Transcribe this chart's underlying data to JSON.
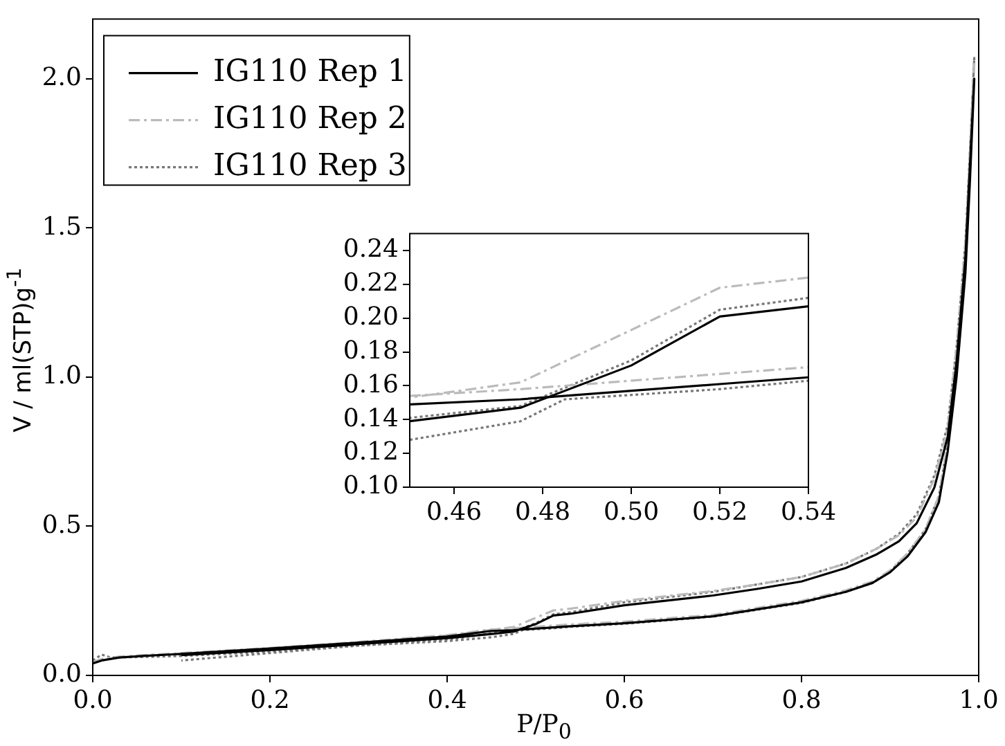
{
  "chart_data": [
    {
      "type": "line",
      "xlabel": "P/P$_{0}$",
      "ylabel": "V / ml(STP)g$^{-1}$",
      "xlim": [
        0,
        1
      ],
      "ylim": [
        0,
        2.2
      ],
      "xticks": [
        {
          "value": 0,
          "label": "0.0"
        },
        {
          "value": 0.2,
          "label": "0.2"
        },
        {
          "value": 0.4,
          "label": "0.4"
        },
        {
          "value": 0.6,
          "label": "0.6"
        },
        {
          "value": 0.8,
          "label": "0.8"
        },
        {
          "value": 1,
          "label": "1.0"
        }
      ],
      "yticks": [
        {
          "value": 0,
          "label": "0.0"
        },
        {
          "value": 0.5,
          "label": "0.5"
        },
        {
          "value": 1,
          "label": "1.0"
        },
        {
          "value": 1.5,
          "label": "1.5"
        },
        {
          "value": 2,
          "label": "2.0"
        }
      ],
      "grid": false,
      "legend": "top left",
      "marker": "none",
      "series": [
        {
          "name": "IG110 Rep 1",
          "color": "#000000",
          "line_style": "solid",
          "x": [
            0,
            0.01,
            0.03,
            0.06,
            0.1,
            0.2,
            0.3,
            0.4,
            0.45,
            0.475,
            0.52,
            0.54,
            0.6,
            0.7,
            0.8,
            0.85,
            0.88,
            0.9,
            0.92,
            0.94,
            0.955,
            0.965,
            0.975,
            0.985,
            0.99,
            0.995,
            0.99,
            0.985,
            0.975,
            0.965,
            0.95,
            0.93,
            0.91,
            0.885,
            0.85,
            0.8,
            0.75,
            0.7,
            0.6,
            0.54,
            0.52,
            0.5,
            0.475,
            0.45,
            0.4,
            0.3,
            0.2,
            0.1
          ],
          "values": [
            0.04,
            0.05,
            0.06,
            0.066,
            0.072,
            0.09,
            0.11,
            0.13,
            0.149,
            0.152,
            0.161,
            0.165,
            0.175,
            0.198,
            0.245,
            0.28,
            0.31,
            0.346,
            0.4,
            0.48,
            0.58,
            0.75,
            1.0,
            1.35,
            1.65,
            2.0,
            1.7,
            1.4,
            1.05,
            0.8,
            0.63,
            0.51,
            0.45,
            0.406,
            0.36,
            0.315,
            0.29,
            0.268,
            0.235,
            0.207,
            0.201,
            0.172,
            0.147,
            0.139,
            0.125,
            0.105,
            0.085,
            0.068
          ]
        },
        {
          "name": "IG110 Rep 2",
          "color": "#bbbbbb",
          "line_style": "dashed",
          "x": [
            0,
            0.01,
            0.03,
            0.06,
            0.1,
            0.2,
            0.3,
            0.4,
            0.45,
            0.475,
            0.52,
            0.54,
            0.6,
            0.7,
            0.8,
            0.85,
            0.88,
            0.9,
            0.92,
            0.94,
            0.955,
            0.965,
            0.975,
            0.985,
            0.99,
            0.995,
            0.99,
            0.985,
            0.975,
            0.965,
            0.95,
            0.93,
            0.91,
            0.885,
            0.85,
            0.8,
            0.75,
            0.7,
            0.6,
            0.54,
            0.52,
            0.5,
            0.475,
            0.45,
            0.4,
            0.3,
            0.2,
            0.1
          ],
          "values": [
            0.045,
            0.055,
            0.063,
            0.068,
            0.075,
            0.092,
            0.112,
            0.135,
            0.154,
            0.158,
            0.167,
            0.171,
            0.18,
            0.203,
            0.25,
            0.285,
            0.315,
            0.352,
            0.41,
            0.49,
            0.6,
            0.78,
            1.03,
            1.4,
            1.7,
            2.05,
            1.75,
            1.45,
            1.1,
            0.83,
            0.66,
            0.53,
            0.47,
            0.425,
            0.375,
            0.33,
            0.305,
            0.283,
            0.25,
            0.224,
            0.218,
            0.193,
            0.162,
            0.153,
            0.133,
            0.11,
            0.09,
            0.072
          ]
        },
        {
          "name": "IG110 Rep 3",
          "color": "#777777",
          "line_style": "dotted",
          "x": [
            0,
            0.01,
            0.02,
            0.06,
            0.1,
            0.2,
            0.3,
            0.4,
            0.45,
            0.475,
            0.485,
            0.52,
            0.54,
            0.6,
            0.7,
            0.8,
            0.85,
            0.88,
            0.9,
            0.92,
            0.94,
            0.955,
            0.965,
            0.975,
            0.985,
            0.99,
            0.995,
            0.99,
            0.985,
            0.975,
            0.965,
            0.95,
            0.93,
            0.91,
            0.885,
            0.85,
            0.8,
            0.75,
            0.7,
            0.6,
            0.54,
            0.52,
            0.5,
            0.475,
            0.45,
            0.4,
            0.3,
            0.2,
            0.1
          ],
          "values": [
            0.05,
            0.07,
            0.06,
            0.062,
            0.065,
            0.08,
            0.1,
            0.115,
            0.128,
            0.139,
            0.152,
            0.158,
            0.163,
            0.173,
            0.197,
            0.243,
            0.28,
            0.31,
            0.348,
            0.41,
            0.49,
            0.6,
            0.78,
            1.03,
            1.4,
            1.72,
            2.07,
            1.75,
            1.45,
            1.1,
            0.84,
            0.67,
            0.54,
            0.475,
            0.425,
            0.375,
            0.33,
            0.305,
            0.28,
            0.245,
            0.212,
            0.205,
            0.175,
            0.148,
            0.141,
            0.12,
            0.1,
            0.075,
            0.05
          ]
        }
      ]
    },
    {
      "type": "line",
      "xlim": [
        0.45,
        0.54
      ],
      "ylim": [
        0.1,
        0.25
      ],
      "xticks": [
        0.46,
        0.48,
        {
          "value": 0.5,
          "label": "0.50"
        },
        0.52,
        0.54
      ],
      "yticks": [
        {
          "value": 0.1,
          "label": "0.10"
        },
        0.12,
        0.14,
        0.16,
        0.18,
        {
          "value": 0.2,
          "label": "0.20"
        },
        0.22,
        0.24
      ],
      "grid": false,
      "marker": "none",
      "series": [
        {
          "color": "#000000",
          "line_style": "solid",
          "x": [
            0.45,
            0.475,
            0.52,
            0.54
          ],
          "values": [
            0.149,
            0.152,
            0.161,
            0.165
          ]
        },
        {
          "color": "#000000",
          "line_style": "solid",
          "x": [
            0.54,
            0.52,
            0.5,
            0.475,
            0.45
          ],
          "values": [
            0.207,
            0.201,
            0.172,
            0.147,
            0.139
          ]
        },
        {
          "color": "#bbbbbb",
          "line_style": "dashed",
          "x": [
            0.45,
            0.475,
            0.52,
            0.54
          ],
          "values": [
            0.154,
            0.158,
            0.167,
            0.171
          ]
        },
        {
          "color": "#bbbbbb",
          "line_style": "dashed",
          "x": [
            0.54,
            0.52,
            0.5,
            0.475,
            0.45
          ],
          "values": [
            0.224,
            0.218,
            0.193,
            0.162,
            0.153
          ]
        },
        {
          "color": "#777777",
          "line_style": "dotted",
          "x": [
            0.45,
            0.475,
            0.485,
            0.52,
            0.54
          ],
          "values": [
            0.128,
            0.139,
            0.152,
            0.158,
            0.163
          ]
        },
        {
          "color": "#777777",
          "line_style": "dotted",
          "x": [
            0.54,
            0.52,
            0.5,
            0.475,
            0.45
          ],
          "values": [
            0.212,
            0.205,
            0.175,
            0.148,
            0.141
          ]
        }
      ]
    }
  ]
}
